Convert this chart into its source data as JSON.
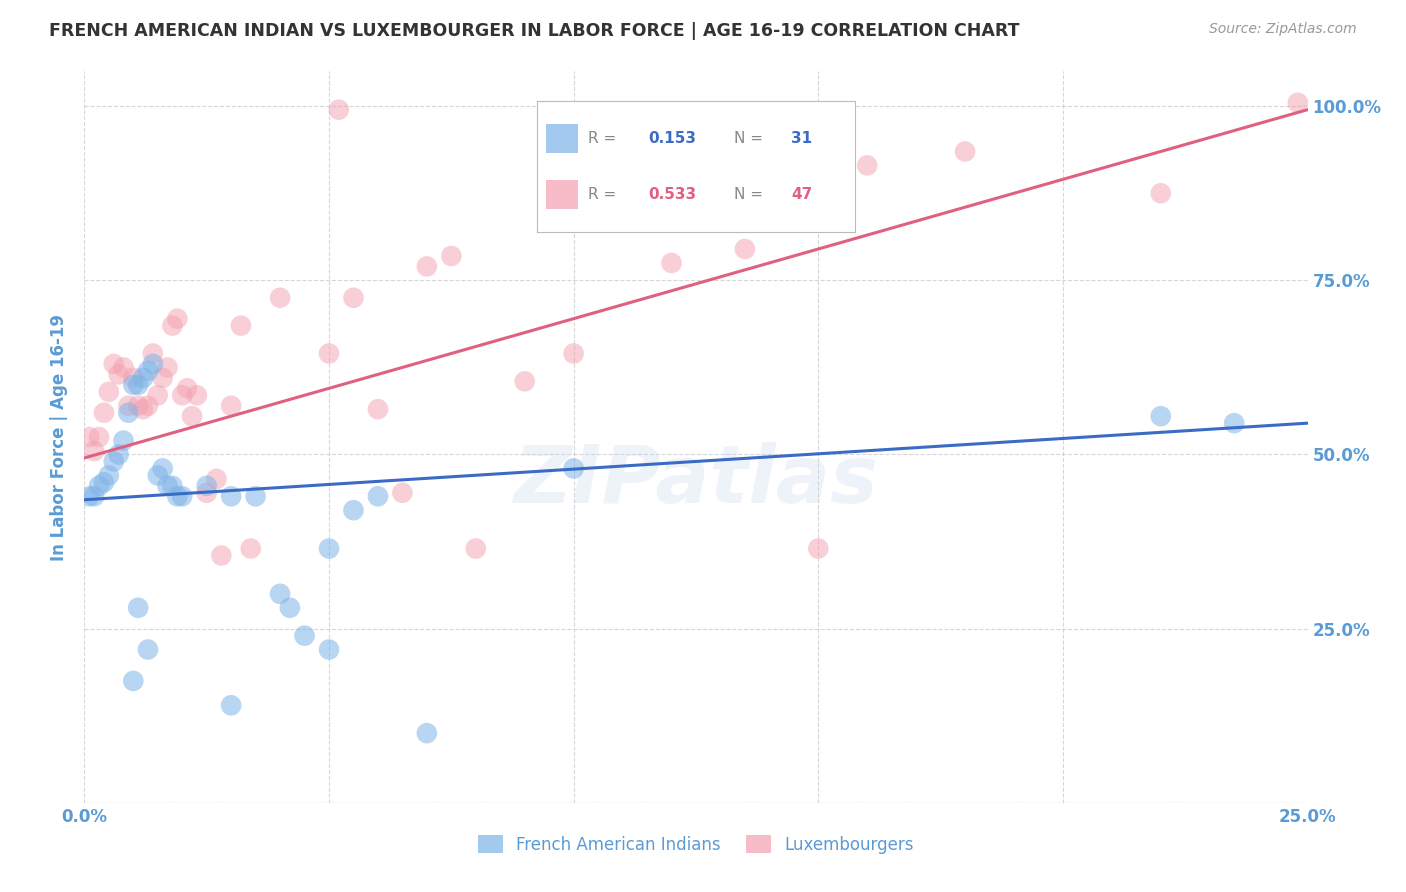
{
  "title": "FRENCH AMERICAN INDIAN VS LUXEMBOURGER IN LABOR FORCE | AGE 16-19 CORRELATION CHART",
  "source": "Source: ZipAtlas.com",
  "ylabel": "In Labor Force | Age 16-19",
  "watermark": "ZIPatlas",
  "xmin": 0.0,
  "xmax": 0.25,
  "ymin": 0.0,
  "ymax": 1.05,
  "xticks": [
    0.0,
    0.05,
    0.1,
    0.15,
    0.2,
    0.25
  ],
  "xtick_labels": [
    "0.0%",
    "",
    "",
    "",
    "",
    "25.0%"
  ],
  "yticks": [
    0.0,
    0.25,
    0.5,
    0.75,
    1.0
  ],
  "ytick_labels_right": [
    "",
    "25.0%",
    "50.0%",
    "75.0%",
    "100.0%"
  ],
  "blue_scatter": [
    [
      0.001,
      0.44
    ],
    [
      0.002,
      0.44
    ],
    [
      0.003,
      0.455
    ],
    [
      0.004,
      0.46
    ],
    [
      0.005,
      0.47
    ],
    [
      0.006,
      0.49
    ],
    [
      0.007,
      0.5
    ],
    [
      0.008,
      0.52
    ],
    [
      0.009,
      0.56
    ],
    [
      0.01,
      0.6
    ],
    [
      0.011,
      0.6
    ],
    [
      0.012,
      0.61
    ],
    [
      0.013,
      0.62
    ],
    [
      0.014,
      0.63
    ],
    [
      0.015,
      0.47
    ],
    [
      0.016,
      0.48
    ],
    [
      0.017,
      0.455
    ],
    [
      0.018,
      0.455
    ],
    [
      0.019,
      0.44
    ],
    [
      0.02,
      0.44
    ],
    [
      0.025,
      0.455
    ],
    [
      0.03,
      0.44
    ],
    [
      0.035,
      0.44
    ],
    [
      0.04,
      0.3
    ],
    [
      0.042,
      0.28
    ],
    [
      0.05,
      0.365
    ],
    [
      0.055,
      0.42
    ],
    [
      0.06,
      0.44
    ],
    [
      0.1,
      0.48
    ],
    [
      0.22,
      0.555
    ],
    [
      0.235,
      0.545
    ],
    [
      0.01,
      0.175
    ],
    [
      0.011,
      0.28
    ],
    [
      0.013,
      0.22
    ],
    [
      0.03,
      0.14
    ],
    [
      0.045,
      0.24
    ],
    [
      0.05,
      0.22
    ],
    [
      0.07,
      0.1
    ]
  ],
  "pink_scatter": [
    [
      0.001,
      0.525
    ],
    [
      0.002,
      0.505
    ],
    [
      0.003,
      0.525
    ],
    [
      0.004,
      0.56
    ],
    [
      0.005,
      0.59
    ],
    [
      0.006,
      0.63
    ],
    [
      0.007,
      0.615
    ],
    [
      0.008,
      0.625
    ],
    [
      0.009,
      0.57
    ],
    [
      0.01,
      0.61
    ],
    [
      0.011,
      0.57
    ],
    [
      0.012,
      0.565
    ],
    [
      0.013,
      0.57
    ],
    [
      0.014,
      0.645
    ],
    [
      0.015,
      0.585
    ],
    [
      0.016,
      0.61
    ],
    [
      0.017,
      0.625
    ],
    [
      0.018,
      0.685
    ],
    [
      0.019,
      0.695
    ],
    [
      0.02,
      0.585
    ],
    [
      0.021,
      0.595
    ],
    [
      0.022,
      0.555
    ],
    [
      0.023,
      0.585
    ],
    [
      0.025,
      0.445
    ],
    [
      0.027,
      0.465
    ],
    [
      0.028,
      0.355
    ],
    [
      0.03,
      0.57
    ],
    [
      0.032,
      0.685
    ],
    [
      0.034,
      0.365
    ],
    [
      0.04,
      0.725
    ],
    [
      0.05,
      0.645
    ],
    [
      0.055,
      0.725
    ],
    [
      0.06,
      0.565
    ],
    [
      0.065,
      0.445
    ],
    [
      0.07,
      0.77
    ],
    [
      0.075,
      0.785
    ],
    [
      0.08,
      0.365
    ],
    [
      0.09,
      0.605
    ],
    [
      0.1,
      0.645
    ],
    [
      0.12,
      0.775
    ],
    [
      0.135,
      0.795
    ],
    [
      0.15,
      0.365
    ],
    [
      0.16,
      0.915
    ],
    [
      0.18,
      0.935
    ],
    [
      0.052,
      0.995
    ],
    [
      0.22,
      0.875
    ],
    [
      0.248,
      1.005
    ]
  ],
  "blue_line_x0": 0.0,
  "blue_line_x1": 0.25,
  "blue_line_y0": 0.435,
  "blue_line_y1": 0.545,
  "pink_line_x0": 0.0,
  "pink_line_x1": 0.25,
  "pink_line_y0": 0.495,
  "pink_line_y1": 0.995,
  "blue_scatter_color": "#7EB3E8",
  "pink_scatter_color": "#F4A0B0",
  "blue_line_color": "#3B6CC5",
  "pink_line_color": "#E06080",
  "legend_blue_color": "#7EB3E8",
  "legend_pink_color": "#F4A0B0",
  "legend_text_gray": "#888888",
  "legend_blue_value_color": "#3B6CC5",
  "legend_pink_value_color": "#E06080",
  "axis_color": "#5B9BD5",
  "grid_color": "#CCCCCC",
  "title_color": "#333333",
  "source_color": "#999999",
  "watermark_color": "#C8D8F0",
  "bg_color": "#FFFFFF",
  "bottom_legend_label_blue": "French American Indians",
  "bottom_legend_label_pink": "Luxembourgers"
}
